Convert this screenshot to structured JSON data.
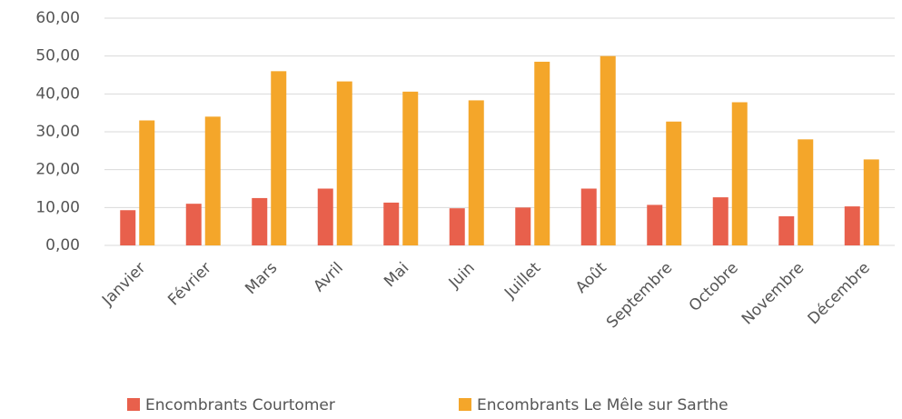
{
  "chart_data": {
    "type": "bar",
    "categories": [
      "Janvier",
      "Février",
      "Mars",
      "Avril",
      "Mai",
      "Juin",
      "Juillet",
      "Août",
      "Septembre",
      "Octobre",
      "Novembre",
      "Décembre"
    ],
    "series": [
      {
        "name": "Encombrants Courtomer",
        "color": "#e8604c",
        "values": [
          9.3,
          11,
          12.5,
          15,
          11.3,
          9.8,
          10,
          15,
          10.7,
          12.7,
          7.7,
          10.3
        ]
      },
      {
        "name": "Encombrants Le Mêle sur Sarthe",
        "color": "#f4a62a",
        "values": [
          33,
          34,
          46,
          43.3,
          40.6,
          38.3,
          48.5,
          50,
          32.7,
          37.8,
          28,
          22.7
        ]
      }
    ],
    "ylim": [
      0,
      60
    ],
    "yticks": [
      {
        "value": 0,
        "label": "0,00"
      },
      {
        "value": 10,
        "label": "10,00"
      },
      {
        "value": 20,
        "label": "20,00"
      },
      {
        "value": 30,
        "label": "30,00"
      },
      {
        "value": 40,
        "label": "40,00"
      },
      {
        "value": 50,
        "label": "50,00"
      },
      {
        "value": 60,
        "label": "60,00"
      }
    ],
    "grid": true,
    "legend": "bottom"
  }
}
